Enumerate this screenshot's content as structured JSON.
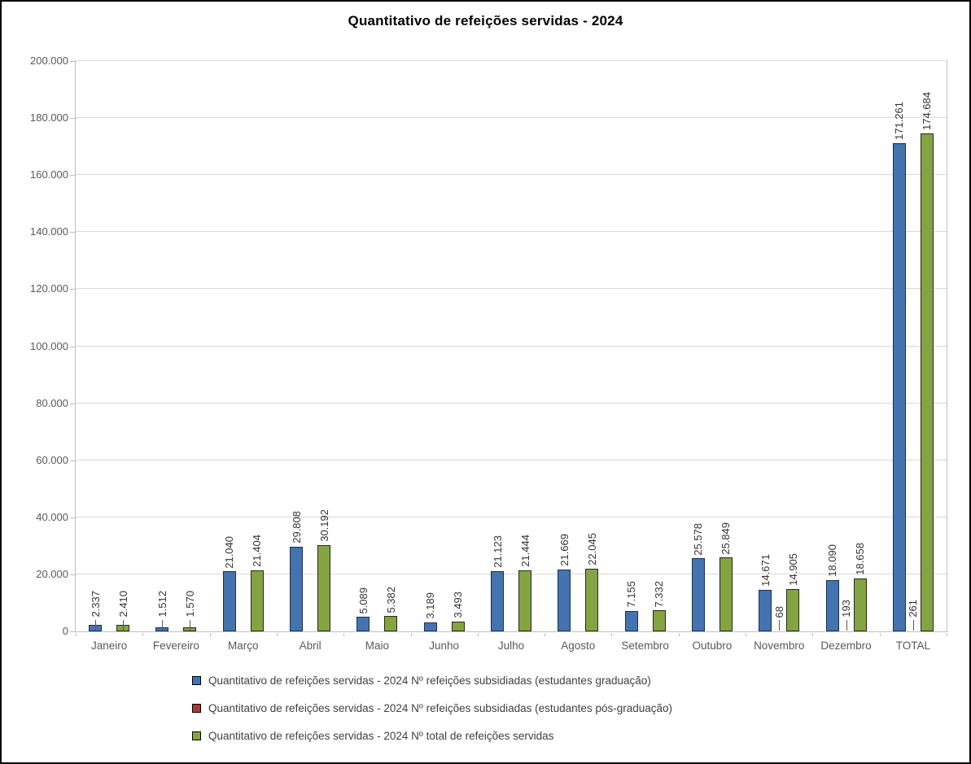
{
  "chart_data": {
    "type": "bar",
    "title": "Quantitativo de refeições servidas - 2024",
    "categories": [
      "Janeiro",
      "Fevereiro",
      "Março",
      "Abril",
      "Maio",
      "Junho",
      "Julho",
      "Agosto",
      "Setembro",
      "Outubro",
      "Novembro",
      "Dezembro",
      "TOTAL"
    ],
    "series": [
      {
        "name": "Quantitativo de refeições servidas - 2024 Nº refeições subsidiadas (estudantes graduação)",
        "color": "#4473B0",
        "border": "#1C2F4E",
        "values": [
          2337,
          1512,
          21040,
          29808,
          5089,
          3189,
          21123,
          21669,
          7155,
          25578,
          14671,
          18090,
          171261
        ],
        "labels": [
          "2.337",
          "1.512",
          "21.040",
          "29.808",
          "5.089",
          "3.189",
          "21.123",
          "21.669",
          "7.155",
          "25.578",
          "14.671",
          "18.090",
          "171.261"
        ]
      },
      {
        "name": "Quantitativo de refeições servidas - 2024 Nº refeições subsidiadas (estudantes pós-graduação)",
        "color": "#A23B37",
        "border": "#262626",
        "values": [
          null,
          null,
          null,
          null,
          null,
          null,
          null,
          null,
          null,
          null,
          68,
          193,
          261
        ],
        "labels": [
          null,
          null,
          null,
          null,
          null,
          null,
          null,
          null,
          null,
          null,
          "68",
          "193",
          "261"
        ]
      },
      {
        "name": "Quantitativo de refeições servidas - 2024 Nº total de refeições servidas",
        "color": "#83A441",
        "border": "#262626",
        "values": [
          2410,
          1570,
          21404,
          30192,
          5382,
          3493,
          21444,
          22045,
          7332,
          25849,
          14905,
          18658,
          174684
        ],
        "labels": [
          "2.410",
          "1.570",
          "21.404",
          "30.192",
          "5.382",
          "3.493",
          "21.444",
          "22.045",
          "7.332",
          "25.849",
          "14.905",
          "18.658",
          "174.684"
        ]
      }
    ],
    "ylim": [
      0,
      200000
    ],
    "ytick_step": 20000,
    "ytick_labels": [
      "0",
      "20.000",
      "40.000",
      "60.000",
      "80.000",
      "100.000",
      "120.000",
      "140.000",
      "160.000",
      "180.000",
      "200.000"
    ],
    "grid": true,
    "legend_position": "bottom",
    "data_label_rotation": 90
  }
}
